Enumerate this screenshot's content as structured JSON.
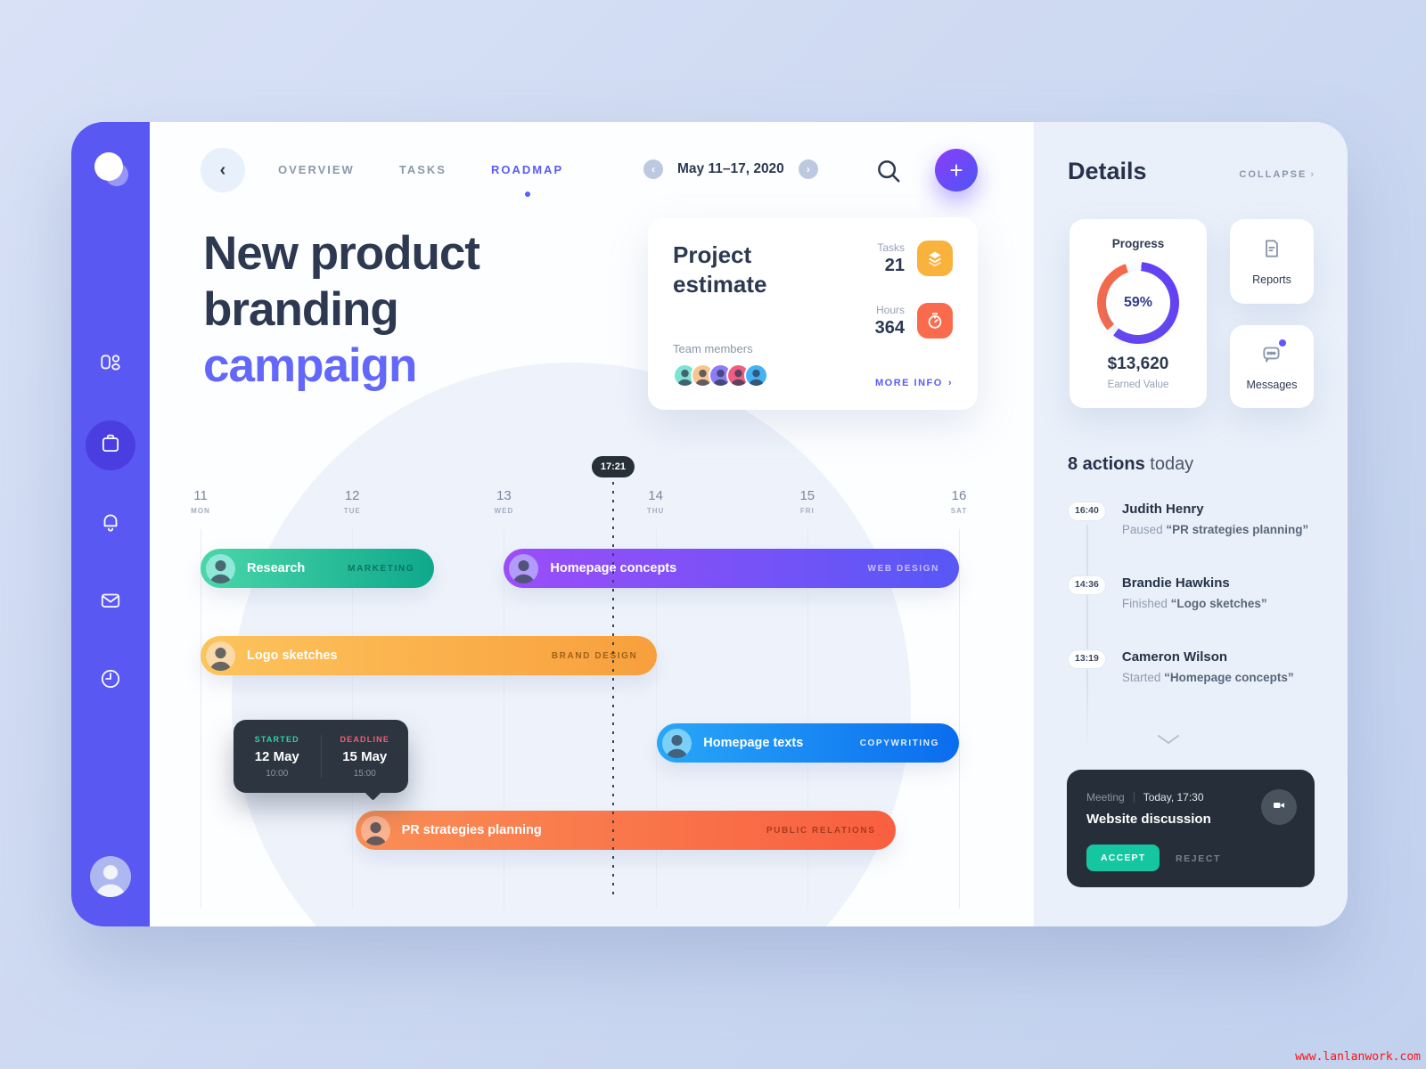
{
  "header": {
    "tabs": [
      {
        "label": "OVERVIEW",
        "active": false
      },
      {
        "label": "TASKS",
        "active": false
      },
      {
        "label": "ROADMAP",
        "active": true
      }
    ],
    "date_range": "May 11–17, 2020"
  },
  "hero": {
    "line1": "New product",
    "line2": "branding",
    "line3": "campaign"
  },
  "estimate": {
    "title": "Project estimate",
    "tasks_label": "Tasks",
    "tasks_value": "21",
    "tasks_icon_color": "#f9b23c",
    "hours_label": "Hours",
    "hours_value": "364",
    "hours_icon_color": "#f96b4c",
    "team_label": "Team members",
    "team_avatar_colors": [
      "#7fe3d2",
      "#f9c58f",
      "#8d7bf7",
      "#ef5d82",
      "#43b3f4"
    ],
    "more_info_label": "MORE INFO"
  },
  "chart_data": {
    "type": "gantt-timeline",
    "week_start_day": 11,
    "day_intervals": 5,
    "now_marker": {
      "time": "17:21",
      "day_position": 13.72
    },
    "days": [
      {
        "num": "11",
        "abbr": "MON"
      },
      {
        "num": "12",
        "abbr": "TUE"
      },
      {
        "num": "13",
        "abbr": "WED"
      },
      {
        "num": "14",
        "abbr": "THU"
      },
      {
        "num": "15",
        "abbr": "FRI"
      },
      {
        "num": "16",
        "abbr": "SAT"
      }
    ],
    "tasks": [
      {
        "label": "Research",
        "tag": "MARKETING",
        "start_day": 11.0,
        "end_day": 12.54,
        "row": 0,
        "color_from": "#4ad7a9",
        "color_to": "#0fa88c",
        "tag_color": "rgba(4,77,62,0.62)",
        "avatar_color": "#8fe8d8"
      },
      {
        "label": "Homepage concepts",
        "tag": "WEB DESIGN",
        "start_day": 13.0,
        "end_day": 16.0,
        "row": 0,
        "color_from": "#9b4df8",
        "color_to": "#5857f6",
        "tag_color": "rgba(235,230,255,0.72)",
        "avatar_color": "#b39bfa"
      },
      {
        "label": "Logo sketches",
        "tag": "BRAND DESIGN",
        "start_day": 11.0,
        "end_day": 14.01,
        "row": 1,
        "color_from": "#fdc45c",
        "color_to": "#f89f3d",
        "tag_color": "rgba(125,74,6,0.72)",
        "avatar_color": "#fbd9a8"
      },
      {
        "label": "Homepage texts",
        "tag": "COPYWRITING",
        "start_day": 14.01,
        "end_day": 16.0,
        "row": 2,
        "color_from": "#28a7f8",
        "color_to": "#0a6cee",
        "tag_color": "rgba(255,255,255,0.88)",
        "avatar_color": "#7cd0f8"
      },
      {
        "label": "PR strategies planning",
        "tag": "PUBLIC RELATIONS",
        "start_day": 12.02,
        "end_day": 15.58,
        "row": 3,
        "color_from": "#fa8e55",
        "color_to": "#f85f40",
        "tag_color": "rgba(125,34,8,0.62)",
        "avatar_color": "#fbb391"
      }
    ],
    "tooltip": {
      "started_label": "STARTED",
      "started_date": "12 May",
      "started_time": "10:00",
      "started_color": "#2ed3a5",
      "deadline_label": "DEADLINE",
      "deadline_date": "15 May",
      "deadline_time": "15:00",
      "deadline_color": "#f85c72"
    }
  },
  "details": {
    "title": "Details",
    "collapse_label": "COLLAPSE",
    "progress": {
      "label": "Progress",
      "percent": "59%",
      "percent_value": 59,
      "earned_value": "$13,620",
      "earned_label": "Earned Value",
      "ring_primary": "#6340f6",
      "ring_secondary": "#f8694a"
    },
    "reports_label": "Reports",
    "messages_label": "Messages"
  },
  "actions": {
    "count": "8 actions",
    "suffix": " today",
    "items": [
      {
        "time": "16:40",
        "name": "Judith Henry",
        "verb": "Paused ",
        "object": "“PR strategies planning”"
      },
      {
        "time": "14:36",
        "name": "Brandie Hawkins",
        "verb": "Finished ",
        "object": "“Logo sketches”"
      },
      {
        "time": "13:19",
        "name": "Cameron Wilson",
        "verb": "Started ",
        "object": "“Homepage concepts”"
      }
    ]
  },
  "meeting": {
    "kind": "Meeting",
    "when": "Today, 17:30",
    "title": "Website discussion",
    "accept_label": "ACCEPT",
    "reject_label": "REJECT",
    "accent": "#15c7a0"
  },
  "watermark": "www.lanlanwork.com"
}
